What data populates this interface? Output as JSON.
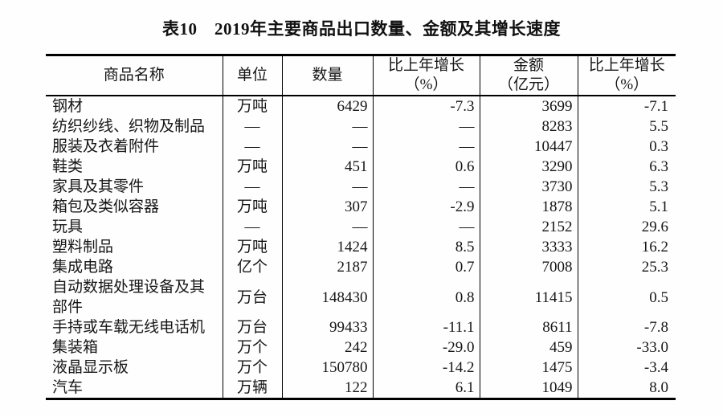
{
  "page": {
    "background": "#fefefe",
    "text_color": "#161616",
    "border_color": "#000000"
  },
  "title": "表10　2019年主要商品出口数量、金额及其增长速度",
  "table": {
    "columns": [
      {
        "key": "name",
        "label": "商品名称",
        "align": "left"
      },
      {
        "key": "unit",
        "label": "单位",
        "align": "center"
      },
      {
        "key": "quantity",
        "label": "数量",
        "align": "right"
      },
      {
        "key": "qty_growth",
        "label": "比上年增长\n（%）",
        "align": "right"
      },
      {
        "key": "value",
        "label": "金额\n（亿元）",
        "align": "right"
      },
      {
        "key": "value_growth",
        "label": "比上年增长\n（%）",
        "align": "right"
      }
    ],
    "rows": [
      [
        "钢材",
        "万吨",
        "6429",
        "-7.3",
        "3699",
        "-7.1"
      ],
      [
        "纺织纱线、织物及制品",
        "—",
        "—",
        "—",
        "8283",
        "5.5"
      ],
      [
        "服装及衣着附件",
        "—",
        "—",
        "—",
        "10447",
        "0.3"
      ],
      [
        "鞋类",
        "万吨",
        "451",
        "0.6",
        "3290",
        "6.3"
      ],
      [
        "家具及其零件",
        "—",
        "—",
        "—",
        "3730",
        "5.3"
      ],
      [
        "箱包及类似容器",
        "万吨",
        "307",
        "-2.9",
        "1878",
        "5.1"
      ],
      [
        "玩具",
        "—",
        "—",
        "—",
        "2152",
        "29.6"
      ],
      [
        "塑料制品",
        "万吨",
        "1424",
        "8.5",
        "3333",
        "16.2"
      ],
      [
        "集成电路",
        "亿个",
        "2187",
        "0.7",
        "7008",
        "25.3"
      ],
      [
        "自动数据处理设备及其部件",
        "万台",
        "148430",
        "0.8",
        "11415",
        "0.5"
      ],
      [
        "手持或车载无线电话机",
        "万台",
        "99433",
        "-11.1",
        "8611",
        "-7.8"
      ],
      [
        "集装箱",
        "万个",
        "242",
        "-29.0",
        "459",
        "-33.0"
      ],
      [
        "液晶显示板",
        "万个",
        "150780",
        "-14.2",
        "1475",
        "-3.4"
      ],
      [
        "汽车",
        "万辆",
        "122",
        "6.1",
        "1049",
        "8.0"
      ]
    ]
  },
  "chart_data": {
    "type": "table",
    "title": "表10　2019年主要商品出口数量、金额及其增长速度",
    "columns": [
      "商品名称",
      "单位",
      "数量",
      "比上年增长（%）",
      "金额（亿元）",
      "比上年增长（%）"
    ],
    "rows": [
      [
        "钢材",
        "万吨",
        6429,
        -7.3,
        3699,
        -7.1
      ],
      [
        "纺织纱线、织物及制品",
        null,
        null,
        null,
        8283,
        5.5
      ],
      [
        "服装及衣着附件",
        null,
        null,
        null,
        10447,
        0.3
      ],
      [
        "鞋类",
        "万吨",
        451,
        0.6,
        3290,
        6.3
      ],
      [
        "家具及其零件",
        null,
        null,
        null,
        3730,
        5.3
      ],
      [
        "箱包及类似容器",
        "万吨",
        307,
        -2.9,
        1878,
        5.1
      ],
      [
        "玩具",
        null,
        null,
        null,
        2152,
        29.6
      ],
      [
        "塑料制品",
        "万吨",
        1424,
        8.5,
        3333,
        16.2
      ],
      [
        "集成电路",
        "亿个",
        2187,
        0.7,
        7008,
        25.3
      ],
      [
        "自动数据处理设备及其部件",
        "万台",
        148430,
        0.8,
        11415,
        0.5
      ],
      [
        "手持或车载无线电话机",
        "万台",
        99433,
        -11.1,
        8611,
        -7.8
      ],
      [
        "集装箱",
        "万个",
        242,
        -29.0,
        459,
        -33.0
      ],
      [
        "液晶显示板",
        "万个",
        150780,
        -14.2,
        1475,
        -3.4
      ],
      [
        "汽车",
        "万辆",
        122,
        6.1,
        1049,
        8.0
      ]
    ]
  }
}
